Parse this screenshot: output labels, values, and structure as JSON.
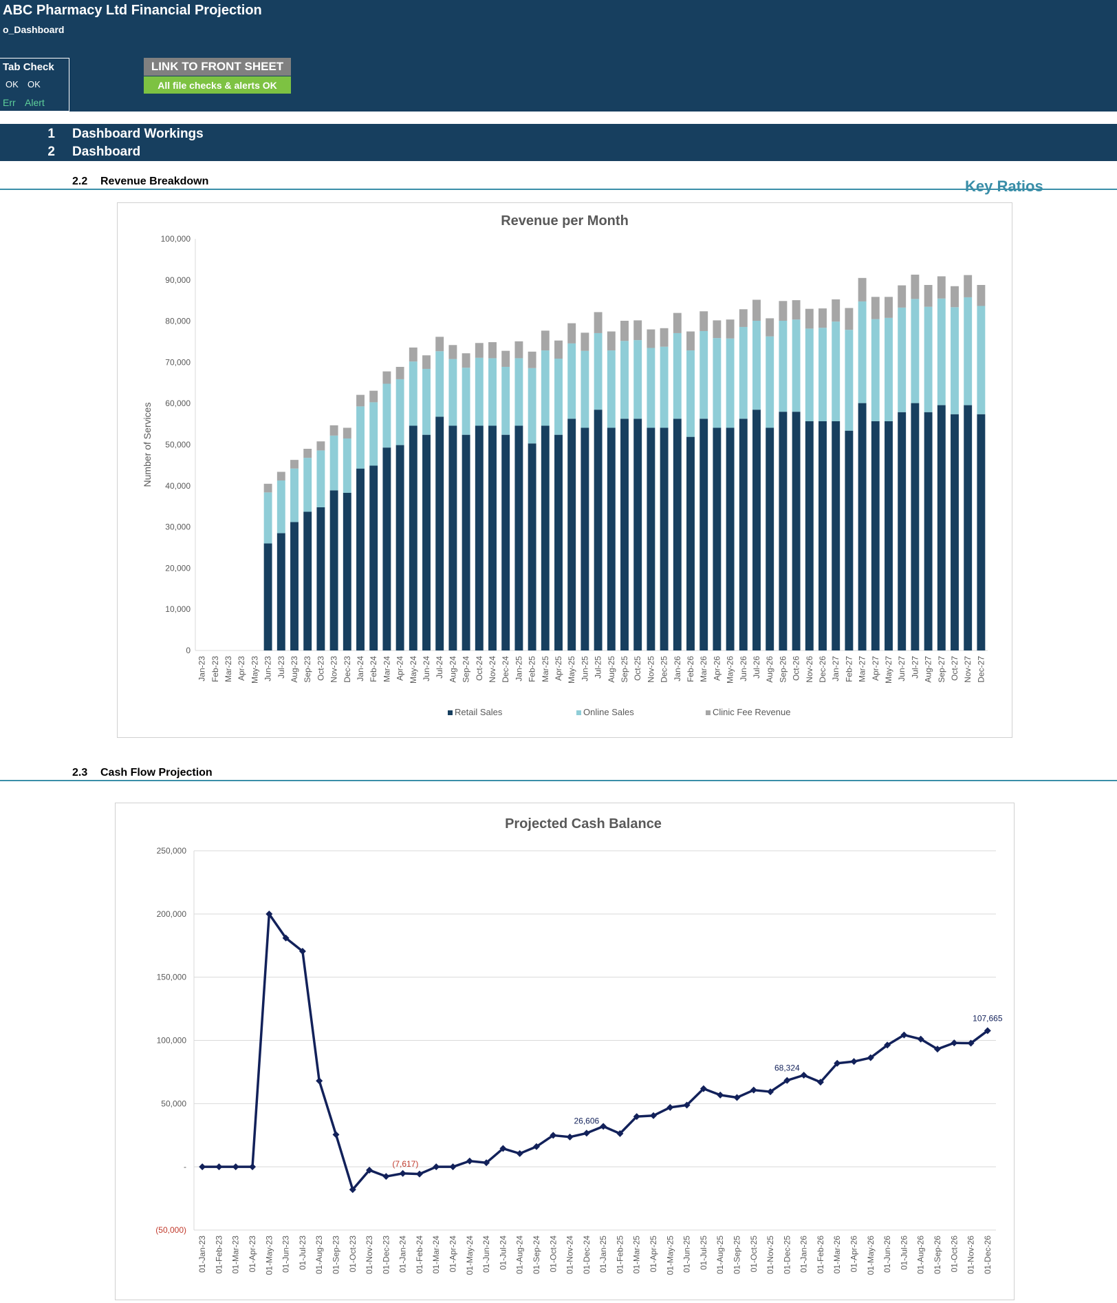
{
  "header": {
    "app_title": "ABC Pharmacy Ltd Financial Projection",
    "sheet_name": "o_Dashboard",
    "tab_check": {
      "label": "Tab Check",
      "ok1": "OK",
      "ok2": "OK",
      "err": "Err",
      "alert": "Alert"
    },
    "link_button": "LINK TO FRONT SHEET",
    "checks_status": "All file checks & alerts OK"
  },
  "nav": [
    {
      "num": "1",
      "label": "Dashboard Workings"
    },
    {
      "num": "2",
      "label": "Dashboard"
    }
  ],
  "sections": {
    "revenue": {
      "num": "2.2",
      "title": "Revenue Breakdown"
    },
    "cashflow": {
      "num": "2.3",
      "title": "Cash Flow Projection"
    },
    "key_ratios": "Key Ratios"
  },
  "colors": {
    "header_bg": "#173f5f",
    "retail": "#173f5f",
    "online": "#8fcdd7",
    "clinic": "#a6a6a6",
    "line": "#12215a",
    "negative": "#c0392b",
    "accent_rule": "#3a8ea8",
    "ok_green": "#7dc242"
  },
  "chart_data": [
    {
      "type": "bar",
      "stacked": true,
      "title": "Revenue per Month",
      "xlabel": "",
      "ylabel": "Number of Services",
      "ylim": [
        0,
        100000
      ],
      "yticks": [
        "0",
        "10,000",
        "20,000",
        "30,000",
        "40,000",
        "50,000",
        "60,000",
        "70,000",
        "80,000",
        "90,000",
        "100,000"
      ],
      "grid": false,
      "legend_position": "bottom",
      "categories": [
        "Jan-23",
        "Feb-23",
        "Mar-23",
        "Apr-23",
        "May-23",
        "Jun-23",
        "Jul-23",
        "Aug-23",
        "Sep-23",
        "Oct-23",
        "Nov-23",
        "Dec-23",
        "Jan-24",
        "Feb-24",
        "Mar-24",
        "Apr-24",
        "May-24",
        "Jun-24",
        "Jul-24",
        "Aug-24",
        "Sep-24",
        "Oct-24",
        "Nov-24",
        "Dec-24",
        "Jan-25",
        "Feb-25",
        "Mar-25",
        "Apr-25",
        "May-25",
        "Jun-25",
        "Jul-25",
        "Aug-25",
        "Sep-25",
        "Oct-25",
        "Nov-25",
        "Dec-25",
        "Jan-26",
        "Feb-26",
        "Mar-26",
        "Apr-26",
        "May-26",
        "Jun-26",
        "Jul-26",
        "Aug-26",
        "Sep-26",
        "Oct-26",
        "Nov-26",
        "Dec-26",
        "Jan-27",
        "Feb-27",
        "Mar-27",
        "Apr-27",
        "May-27",
        "Jun-27",
        "Jul-27",
        "Aug-27",
        "Sep-27",
        "Oct-27",
        "Nov-27",
        "Dec-27"
      ],
      "series": [
        {
          "name": "Retail Sales",
          "values": [
            0,
            0,
            0,
            0,
            0,
            26000,
            28500,
            31200,
            33700,
            34800,
            38900,
            38300,
            44200,
            44900,
            49300,
            49900,
            54600,
            52400,
            56800,
            54600,
            52400,
            54600,
            54600,
            52400,
            54600,
            50300,
            54600,
            52400,
            56300,
            54100,
            58500,
            54100,
            56300,
            56300,
            54100,
            54100,
            56300,
            51900,
            56300,
            54100,
            54100,
            56300,
            58500,
            54100,
            58000,
            58000,
            55700,
            55700,
            55700,
            53400,
            60100,
            55700,
            55700,
            57900,
            60100,
            57900,
            59600,
            57400,
            59600,
            57400
          ]
        },
        {
          "name": "Online Sales",
          "values": [
            0,
            0,
            0,
            0,
            0,
            12400,
            12800,
            13000,
            13100,
            13800,
            13300,
            13200,
            15100,
            15400,
            15500,
            16000,
            15600,
            16000,
            15900,
            16200,
            16300,
            16500,
            16400,
            16500,
            16400,
            18300,
            18300,
            18500,
            18300,
            18700,
            18600,
            18800,
            18900,
            19100,
            19400,
            19700,
            20800,
            21000,
            21300,
            21800,
            21700,
            22300,
            21600,
            22200,
            22100,
            22400,
            22500,
            22700,
            24200,
            24500,
            24700,
            24800,
            25100,
            25400,
            25300,
            25600,
            25900,
            26000,
            26200,
            26300
          ]
        },
        {
          "name": "Clinic Fee Revenue",
          "values": [
            0,
            0,
            0,
            0,
            0,
            2100,
            2100,
            2100,
            2200,
            2200,
            2500,
            2600,
            2800,
            2800,
            3000,
            3000,
            3400,
            3300,
            3500,
            3400,
            3500,
            3600,
            3900,
            3900,
            4100,
            4000,
            4800,
            4400,
            4900,
            4400,
            5100,
            4600,
            4900,
            4800,
            4500,
            4500,
            4900,
            4600,
            4800,
            4300,
            4600,
            4300,
            5100,
            4400,
            4800,
            4700,
            4800,
            4700,
            5400,
            5300,
            5700,
            5400,
            5100,
            5400,
            5900,
            5300,
            5400,
            5100,
            5400,
            5100
          ]
        }
      ]
    },
    {
      "type": "line",
      "title": "Projected Cash Balance",
      "xlabel": "",
      "ylabel": "",
      "ylim": [
        -50000,
        250000
      ],
      "yticks": [
        "(50,000)",
        "-",
        "50,000",
        "100,000",
        "150,000",
        "200,000",
        "250,000"
      ],
      "grid": true,
      "categories": [
        "01-Jan-23",
        "01-Feb-23",
        "01-Mar-23",
        "01-Apr-23",
        "01-May-23",
        "01-Jun-23",
        "01-Jul-23",
        "01-Aug-23",
        "01-Sep-23",
        "01-Oct-23",
        "01-Nov-23",
        "01-Dec-23",
        "01-Jan-24",
        "01-Feb-24",
        "01-Mar-24",
        "01-Apr-24",
        "01-May-24",
        "01-Jun-24",
        "01-Jul-24",
        "01-Aug-24",
        "01-Sep-24",
        "01-Oct-24",
        "01-Nov-24",
        "01-Dec-24",
        "01-Jan-25",
        "01-Feb-25",
        "01-Mar-25",
        "01-Apr-25",
        "01-May-25",
        "01-Jun-25",
        "01-Jul-25",
        "01-Aug-25",
        "01-Sep-25",
        "01-Oct-25",
        "01-Nov-25",
        "01-Dec-25",
        "01-Jan-26",
        "01-Feb-26",
        "01-Mar-26",
        "01-Apr-26",
        "01-May-26",
        "01-Jun-26",
        "01-Jul-26",
        "01-Aug-26",
        "01-Sep-26",
        "01-Oct-26",
        "01-Nov-26",
        "01-Dec-26"
      ],
      "values": [
        0,
        0,
        0,
        0,
        200000,
        181000,
        170500,
        68000,
        25500,
        -18000,
        -2600,
        -7617,
        -5200,
        -5700,
        0,
        0,
        4600,
        3200,
        14500,
        10500,
        16000,
        24900,
        23600,
        26606,
        32000,
        26300,
        39800,
        40500,
        47000,
        48800,
        61800,
        56800,
        54800,
        60700,
        59400,
        68324,
        72500,
        67000,
        81900,
        83300,
        86300,
        96300,
        104300,
        101000,
        93100,
        98000,
        97800,
        107665
      ],
      "annotations": [
        {
          "label": "(7,617)",
          "index": 11,
          "negative": true
        },
        {
          "label": "26,606",
          "index": 23,
          "negative": false
        },
        {
          "label": "68,324",
          "index": 35,
          "negative": false
        },
        {
          "label": "107,665",
          "index": 47,
          "negative": false
        }
      ]
    }
  ]
}
